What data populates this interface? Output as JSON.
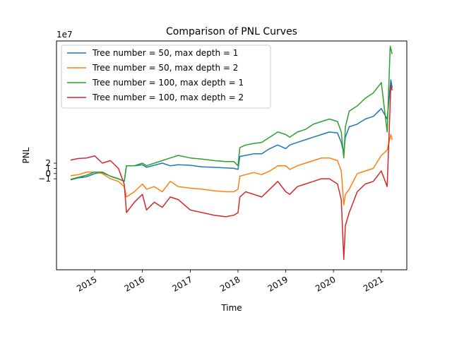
{
  "chart_data": {
    "type": "line",
    "title": "Comparison of PNL Curves",
    "xlabel": "Time",
    "ylabel": "PNL",
    "y_offset_label": "1e7",
    "y_scale": 10000000,
    "ylim": [
      -18.5,
      25.5
    ],
    "xlim": [
      "2014-03-15",
      "2021-07-15"
    ],
    "yticks": [
      -1,
      0,
      1,
      2
    ],
    "ytick_labels": [
      "−1",
      "0",
      "1",
      "2"
    ],
    "xticks": [
      "2015-01-01",
      "2016-01-01",
      "2017-01-01",
      "2018-01-01",
      "2019-01-01",
      "2020-01-01",
      "2021-01-01"
    ],
    "xtick_labels": [
      "2015",
      "2016",
      "2017",
      "2018",
      "2019",
      "2020",
      "2021"
    ],
    "grid": false,
    "legend_position": "upper-left",
    "series": [
      {
        "name": "Tree number = 50, max depth = 1",
        "color": "#1f77b4",
        "points": [
          [
            "2014-07-01",
            -1.2
          ],
          [
            "2014-09-01",
            -0.8
          ],
          [
            "2014-11-01",
            -0.6
          ],
          [
            "2015-01-01",
            0.0
          ],
          [
            "2015-03-01",
            0.2
          ],
          [
            "2015-05-01",
            -0.5
          ],
          [
            "2015-07-01",
            -1.0
          ],
          [
            "2015-08-15",
            -1.5
          ],
          [
            "2015-09-01",
            1.5
          ],
          [
            "2015-11-01",
            1.5
          ],
          [
            "2016-01-01",
            1.7
          ],
          [
            "2016-02-01",
            1.2
          ],
          [
            "2016-04-01",
            1.6
          ],
          [
            "2016-06-01",
            2.0
          ],
          [
            "2016-08-01",
            1.5
          ],
          [
            "2016-10-01",
            1.7
          ],
          [
            "2017-01-01",
            1.6
          ],
          [
            "2017-04-01",
            1.3
          ],
          [
            "2017-07-01",
            1.2
          ],
          [
            "2017-10-01",
            1.1
          ],
          [
            "2017-12-01",
            1.0
          ],
          [
            "2018-01-01",
            0.8
          ],
          [
            "2018-01-15",
            3.3
          ],
          [
            "2018-03-01",
            3.5
          ],
          [
            "2018-05-01",
            3.8
          ],
          [
            "2018-07-01",
            3.8
          ],
          [
            "2018-09-01",
            4.8
          ],
          [
            "2018-11-01",
            5.5
          ],
          [
            "2019-01-01",
            4.8
          ],
          [
            "2019-02-01",
            5.5
          ],
          [
            "2019-04-01",
            6.0
          ],
          [
            "2019-06-01",
            6.5
          ],
          [
            "2019-08-01",
            7.0
          ],
          [
            "2019-10-01",
            7.5
          ],
          [
            "2019-12-01",
            8.0
          ],
          [
            "2020-02-01",
            7.8
          ],
          [
            "2020-03-01",
            6.0
          ],
          [
            "2020-03-20",
            4.0
          ],
          [
            "2020-04-01",
            7.0
          ],
          [
            "2020-05-01",
            9.0
          ],
          [
            "2020-07-01",
            9.5
          ],
          [
            "2020-09-01",
            10.5
          ],
          [
            "2020-11-01",
            11.0
          ],
          [
            "2021-01-01",
            12.5
          ],
          [
            "2021-02-15",
            10.5
          ],
          [
            "2021-03-15",
            18.0
          ],
          [
            "2021-03-25",
            16.5
          ]
        ]
      },
      {
        "name": "Tree number = 50, max depth = 2",
        "color": "#ff7f0e",
        "points": [
          [
            "2014-07-01",
            -0.4
          ],
          [
            "2014-09-01",
            -0.2
          ],
          [
            "2014-11-01",
            0.3
          ],
          [
            "2015-01-01",
            0.3
          ],
          [
            "2015-03-01",
            0.0
          ],
          [
            "2015-05-01",
            -1.0
          ],
          [
            "2015-07-01",
            -1.5
          ],
          [
            "2015-08-15",
            -2.5
          ],
          [
            "2015-09-01",
            -4.5
          ],
          [
            "2015-11-01",
            -3.5
          ],
          [
            "2016-01-01",
            -2.0
          ],
          [
            "2016-02-01",
            -3.0
          ],
          [
            "2016-04-01",
            -2.5
          ],
          [
            "2016-06-01",
            -3.5
          ],
          [
            "2016-08-01",
            -1.5
          ],
          [
            "2016-10-01",
            -2.5
          ],
          [
            "2017-01-01",
            -2.8
          ],
          [
            "2017-04-01",
            -3.0
          ],
          [
            "2017-07-01",
            -3.3
          ],
          [
            "2017-10-01",
            -3.5
          ],
          [
            "2017-12-01",
            -3.5
          ],
          [
            "2018-01-01",
            -3.0
          ],
          [
            "2018-01-15",
            -0.5
          ],
          [
            "2018-03-01",
            -0.2
          ],
          [
            "2018-05-01",
            0.2
          ],
          [
            "2018-07-01",
            -0.2
          ],
          [
            "2018-09-01",
            0.5
          ],
          [
            "2018-11-01",
            1.5
          ],
          [
            "2019-01-01",
            1.5
          ],
          [
            "2019-02-01",
            0.8
          ],
          [
            "2019-04-01",
            1.5
          ],
          [
            "2019-06-01",
            2.0
          ],
          [
            "2019-08-01",
            2.5
          ],
          [
            "2019-10-01",
            3.0
          ],
          [
            "2019-12-01",
            3.0
          ],
          [
            "2020-02-01",
            2.5
          ],
          [
            "2020-03-01",
            0.5
          ],
          [
            "2020-03-20",
            -6.0
          ],
          [
            "2020-04-01",
            -4.0
          ],
          [
            "2020-05-01",
            -3.0
          ],
          [
            "2020-07-01",
            0.0
          ],
          [
            "2020-09-01",
            0.5
          ],
          [
            "2020-11-01",
            1.0
          ],
          [
            "2021-01-01",
            3.5
          ],
          [
            "2021-02-15",
            4.5
          ],
          [
            "2021-03-15",
            7.5
          ],
          [
            "2021-03-25",
            6.5
          ]
        ]
      },
      {
        "name": "Tree number = 100, max depth = 1",
        "color": "#2ca02c",
        "points": [
          [
            "2014-07-01",
            -1.1
          ],
          [
            "2014-09-01",
            -0.7
          ],
          [
            "2014-11-01",
            -0.3
          ],
          [
            "2015-01-01",
            0.3
          ],
          [
            "2015-03-01",
            0.3
          ],
          [
            "2015-05-01",
            -0.5
          ],
          [
            "2015-07-01",
            -1.0
          ],
          [
            "2015-08-15",
            -1.5
          ],
          [
            "2015-09-01",
            1.5
          ],
          [
            "2015-11-01",
            1.5
          ],
          [
            "2016-01-01",
            2.0
          ],
          [
            "2016-02-01",
            1.5
          ],
          [
            "2016-04-01",
            2.0
          ],
          [
            "2016-06-01",
            2.5
          ],
          [
            "2016-08-01",
            3.0
          ],
          [
            "2016-10-01",
            3.5
          ],
          [
            "2017-01-01",
            3.0
          ],
          [
            "2017-04-01",
            2.8
          ],
          [
            "2017-07-01",
            2.5
          ],
          [
            "2017-10-01",
            2.3
          ],
          [
            "2017-12-01",
            2.3
          ],
          [
            "2018-01-01",
            1.5
          ],
          [
            "2018-01-15",
            5.0
          ],
          [
            "2018-03-01",
            5.5
          ],
          [
            "2018-05-01",
            5.8
          ],
          [
            "2018-07-01",
            6.0
          ],
          [
            "2018-09-01",
            7.0
          ],
          [
            "2018-11-01",
            8.0
          ],
          [
            "2019-01-01",
            7.5
          ],
          [
            "2019-02-01",
            7.0
          ],
          [
            "2019-04-01",
            8.0
          ],
          [
            "2019-06-01",
            8.5
          ],
          [
            "2019-08-01",
            9.5
          ],
          [
            "2019-10-01",
            10.0
          ],
          [
            "2019-12-01",
            10.5
          ],
          [
            "2020-02-01",
            10.0
          ],
          [
            "2020-03-01",
            8.0
          ],
          [
            "2020-03-20",
            3.0
          ],
          [
            "2020-04-01",
            9.0
          ],
          [
            "2020-05-01",
            12.0
          ],
          [
            "2020-07-01",
            13.0
          ],
          [
            "2020-09-01",
            14.5
          ],
          [
            "2020-11-01",
            15.5
          ],
          [
            "2021-01-01",
            17.5
          ],
          [
            "2021-02-15",
            8.0
          ],
          [
            "2021-03-10",
            24.5
          ],
          [
            "2021-03-25",
            23.0
          ]
        ]
      },
      {
        "name": "Tree number = 100, max depth = 2",
        "color": "#d62728",
        "points": [
          [
            "2014-07-01",
            2.6
          ],
          [
            "2014-09-01",
            2.9
          ],
          [
            "2014-11-01",
            3.0
          ],
          [
            "2015-01-01",
            3.4
          ],
          [
            "2015-03-01",
            2.0
          ],
          [
            "2015-05-01",
            2.5
          ],
          [
            "2015-07-01",
            1.0
          ],
          [
            "2015-08-15",
            -2.0
          ],
          [
            "2015-09-01",
            -7.5
          ],
          [
            "2015-11-01",
            -5.5
          ],
          [
            "2016-01-01",
            -4.0
          ],
          [
            "2016-02-01",
            -7.0
          ],
          [
            "2016-04-01",
            -5.5
          ],
          [
            "2016-06-01",
            -6.5
          ],
          [
            "2016-08-01",
            -4.5
          ],
          [
            "2016-10-01",
            -5.0
          ],
          [
            "2017-01-01",
            -7.0
          ],
          [
            "2017-04-01",
            -7.5
          ],
          [
            "2017-07-01",
            -8.0
          ],
          [
            "2017-10-01",
            -8.3
          ],
          [
            "2017-12-01",
            -8.0
          ],
          [
            "2018-01-01",
            -7.5
          ],
          [
            "2018-01-15",
            -4.5
          ],
          [
            "2018-03-01",
            -3.5
          ],
          [
            "2018-05-01",
            -4.0
          ],
          [
            "2018-07-01",
            -4.5
          ],
          [
            "2018-09-01",
            -3.0
          ],
          [
            "2018-11-01",
            -1.5
          ],
          [
            "2019-01-01",
            -3.5
          ],
          [
            "2019-02-01",
            -4.0
          ],
          [
            "2019-04-01",
            -2.5
          ],
          [
            "2019-06-01",
            -2.0
          ],
          [
            "2019-08-01",
            -1.5
          ],
          [
            "2019-10-01",
            -1.0
          ],
          [
            "2019-12-01",
            -1.0
          ],
          [
            "2020-02-01",
            -2.0
          ],
          [
            "2020-03-01",
            -5.0
          ],
          [
            "2020-03-20",
            -16.5
          ],
          [
            "2020-04-01",
            -10.0
          ],
          [
            "2020-05-01",
            -7.5
          ],
          [
            "2020-07-01",
            -3.5
          ],
          [
            "2020-09-01",
            -2.0
          ],
          [
            "2020-11-01",
            -1.5
          ],
          [
            "2021-01-01",
            0.5
          ],
          [
            "2021-02-15",
            -2.5
          ],
          [
            "2021-03-15",
            17.0
          ],
          [
            "2021-03-25",
            16.0
          ]
        ]
      }
    ]
  }
}
